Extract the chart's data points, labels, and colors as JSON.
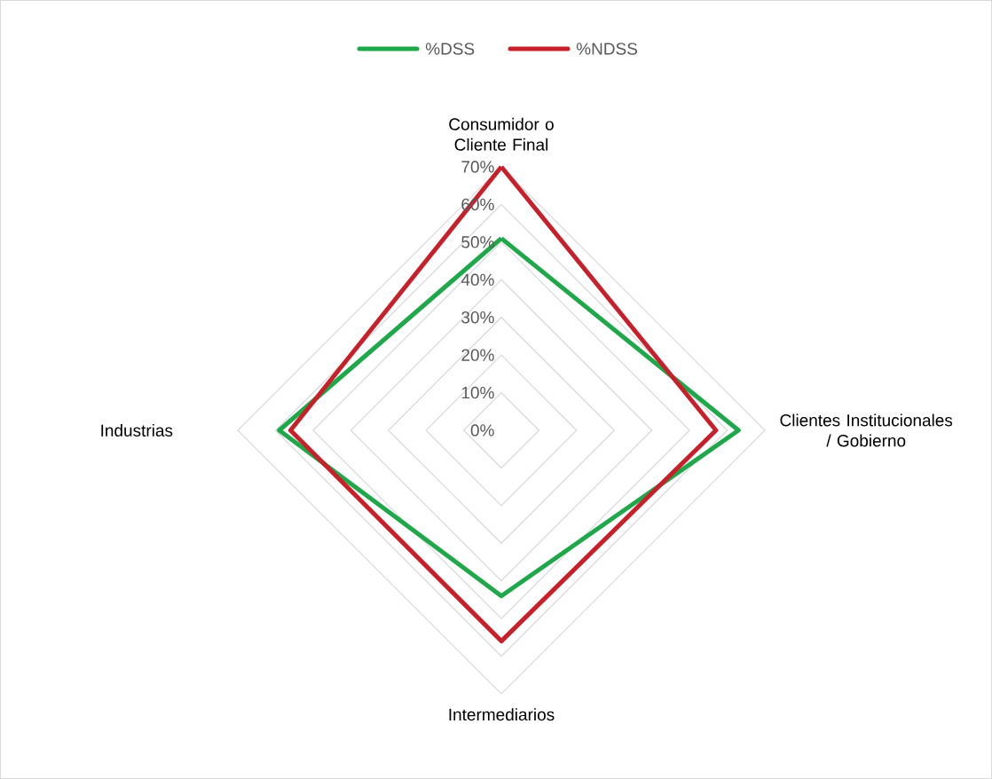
{
  "chart_data": {
    "type": "radar",
    "categories": [
      "Consumidor o Cliente Final",
      "Clientes Institucionales / Gobierno",
      "Intermediarios",
      "Industrias"
    ],
    "series": [
      {
        "name": "%DSS",
        "color": "#1fa84a",
        "values": [
          51,
          63,
          44,
          59
        ]
      },
      {
        "name": "%NDSS",
        "color": "#c8202a",
        "values": [
          70,
          57,
          56,
          56
        ]
      }
    ],
    "ylim": [
      0,
      70
    ],
    "yticks": [
      {
        "value": 0,
        "label": "0%"
      },
      {
        "value": 10,
        "label": "10%"
      },
      {
        "value": 20,
        "label": "20%"
      },
      {
        "value": 30,
        "label": "30%"
      },
      {
        "value": 40,
        "label": "40%"
      },
      {
        "value": 50,
        "label": "50%"
      },
      {
        "value": 60,
        "label": "60%"
      },
      {
        "value": 70,
        "label": "70%"
      }
    ],
    "grid": true,
    "legend": "top"
  }
}
